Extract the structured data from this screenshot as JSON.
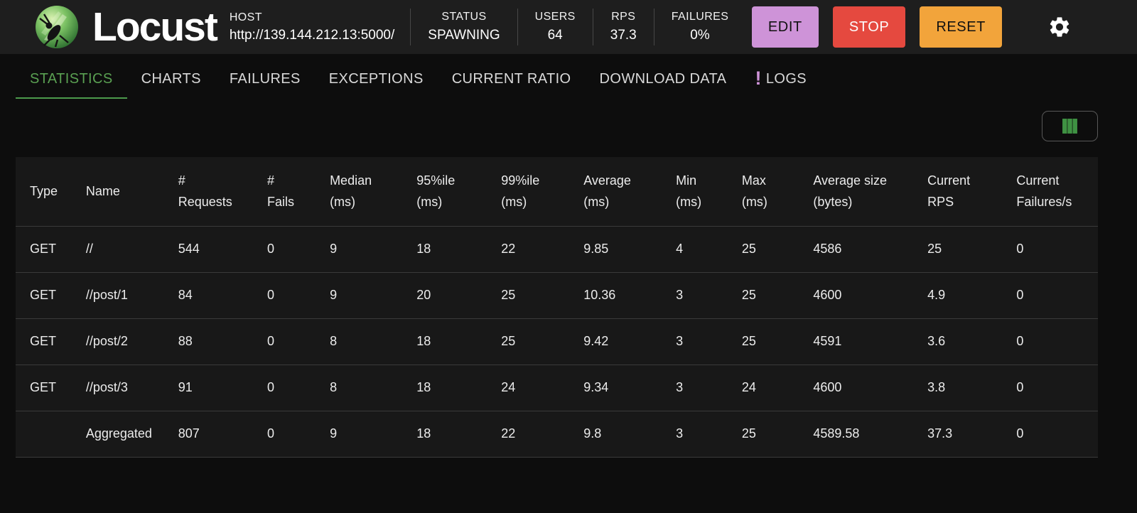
{
  "colors": {
    "accent_green": "#5aa052",
    "tab_underline_green": "#4c9a4c",
    "columns_icon_green": "#3f9243",
    "edit_button": "#ce93d8",
    "stop_button": "#e5493f",
    "reset_button": "#f2a43b",
    "logs_exclamation": "#ce93d8",
    "topbar_background": "#1e1e1e",
    "page_background": "#0d0d0d",
    "table_background": "#181818"
  },
  "topbar": {
    "title": "Locust",
    "host": {
      "label": "HOST",
      "url": "http://139.144.212.13:5000/"
    },
    "stats": [
      {
        "label": "STATUS",
        "value": "SPAWNING"
      },
      {
        "label": "USERS",
        "value": "64"
      },
      {
        "label": "RPS",
        "value": "37.3"
      },
      {
        "label": "FAILURES",
        "value": "0%"
      }
    ],
    "buttons": {
      "edit": "EDIT",
      "stop": "STOP",
      "reset": "RESET"
    },
    "icons": {
      "settings": "gear-icon",
      "logo": "locust-logo"
    }
  },
  "tabs": [
    {
      "label": "STATISTICS",
      "active": true
    },
    {
      "label": "CHARTS",
      "active": false
    },
    {
      "label": "FAILURES",
      "active": false
    },
    {
      "label": "EXCEPTIONS",
      "active": false
    },
    {
      "label": "CURRENT RATIO",
      "active": false
    },
    {
      "label": "DOWNLOAD DATA",
      "active": false
    },
    {
      "label": "LOGS",
      "active": false,
      "icon": "priority-high-icon",
      "icon_glyph": "!"
    }
  ],
  "toolbar": {
    "view_columns_icon": "view-columns-icon"
  },
  "table": {
    "columns": [
      {
        "id": "type",
        "label": "Type"
      },
      {
        "id": "name",
        "label": "Name"
      },
      {
        "id": "requests",
        "label": "#\nRequests"
      },
      {
        "id": "fails",
        "label": "#\nFails"
      },
      {
        "id": "median",
        "label": "Median\n(ms)"
      },
      {
        "id": "p95",
        "label": "95%ile\n(ms)"
      },
      {
        "id": "p99",
        "label": "99%ile\n(ms)"
      },
      {
        "id": "average",
        "label": "Average\n(ms)"
      },
      {
        "id": "min",
        "label": "Min\n(ms)"
      },
      {
        "id": "max",
        "label": "Max\n(ms)"
      },
      {
        "id": "avg_size",
        "label": "Average size\n(bytes)"
      },
      {
        "id": "current_rps",
        "label": "Current\nRPS"
      },
      {
        "id": "current_failures",
        "label": "Current\nFailures/s"
      }
    ],
    "rows": [
      [
        "GET",
        "//",
        "544",
        "0",
        "9",
        "18",
        "22",
        "9.85",
        "4",
        "25",
        "4586",
        "25",
        "0"
      ],
      [
        "GET",
        "//post/1",
        "84",
        "0",
        "9",
        "20",
        "25",
        "10.36",
        "3",
        "25",
        "4600",
        "4.9",
        "0"
      ],
      [
        "GET",
        "//post/2",
        "88",
        "0",
        "8",
        "18",
        "25",
        "9.42",
        "3",
        "25",
        "4591",
        "3.6",
        "0"
      ],
      [
        "GET",
        "//post/3",
        "91",
        "0",
        "8",
        "18",
        "24",
        "9.34",
        "3",
        "24",
        "4600",
        "3.8",
        "0"
      ],
      [
        "",
        "Aggregated",
        "807",
        "0",
        "9",
        "18",
        "22",
        "9.8",
        "3",
        "25",
        "4589.58",
        "37.3",
        "0"
      ]
    ]
  }
}
